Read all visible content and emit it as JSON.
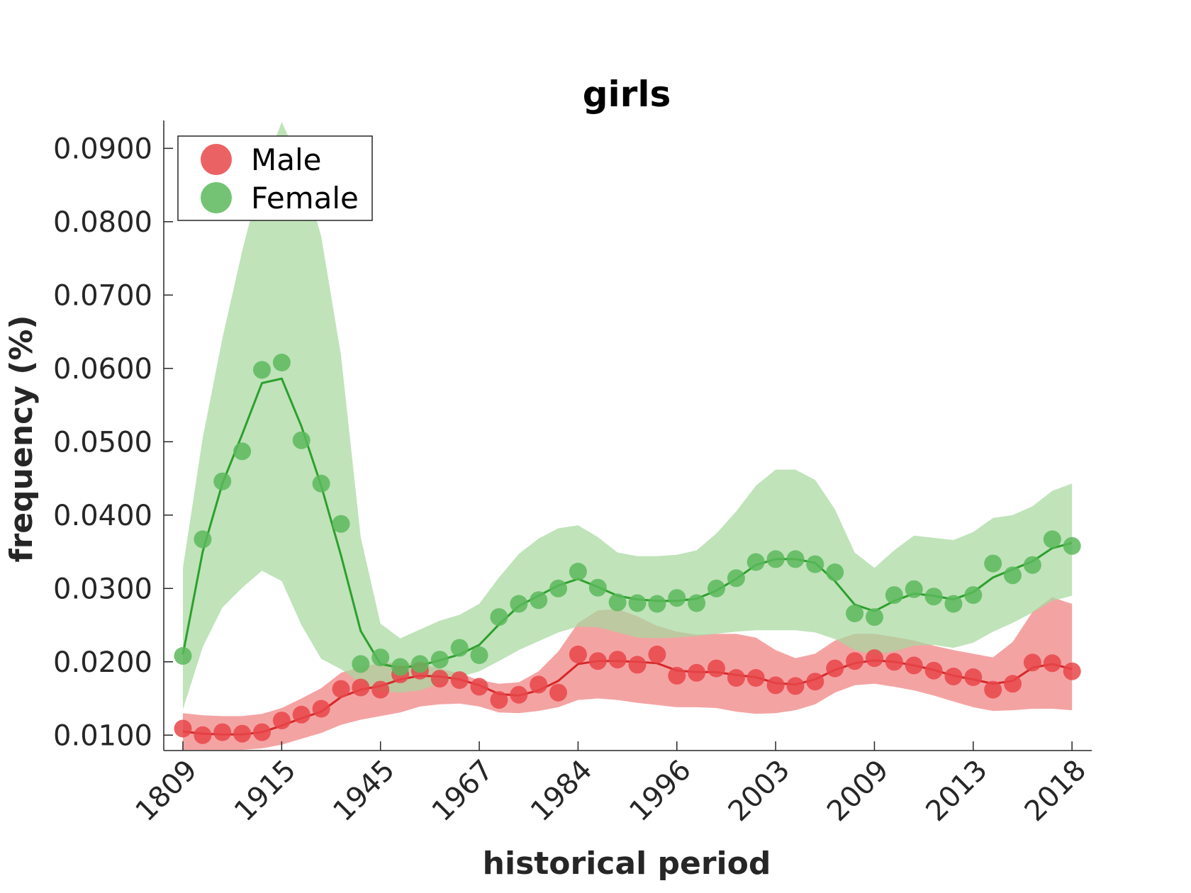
{
  "chart_data": {
    "type": "line",
    "title": "girls",
    "xlabel": "historical period",
    "ylabel": "frequency (%)",
    "x_tick_labels": [
      "1809",
      "1915",
      "1945",
      "1967",
      "1984",
      "1996",
      "2003",
      "2009",
      "2013",
      "2018"
    ],
    "y_ticks": [
      0.01,
      0.02,
      0.03,
      0.04,
      0.05,
      0.06,
      0.07,
      0.08,
      0.09
    ],
    "y_tick_labels": [
      "0.0100",
      "0.0200",
      "0.0300",
      "0.0400",
      "0.0500",
      "0.0600",
      "0.0700",
      "0.0800",
      "0.0900"
    ],
    "ylim": [
      0.0079,
      0.0938
    ],
    "grid": false,
    "legend_position": "top-left",
    "series": [
      {
        "name": "Male",
        "color": "#d62728",
        "marker_color": "#e8474a",
        "band_color": "#f08080",
        "points": [
          0.0109,
          0.01,
          0.0104,
          0.0102,
          0.0104,
          0.012,
          0.0128,
          0.0136,
          0.0163,
          0.0165,
          0.0162,
          0.0183,
          0.0188,
          0.0177,
          0.0175,
          0.0166,
          0.0148,
          0.0155,
          0.0169,
          0.0158,
          0.021,
          0.0201,
          0.0203,
          0.0196,
          0.021,
          0.0181,
          0.0185,
          0.0191,
          0.0178,
          0.0178,
          0.0168,
          0.0167,
          0.0173,
          0.0191,
          0.0201,
          0.0205,
          0.02,
          0.0195,
          0.0188,
          0.018,
          0.0179,
          0.0162,
          0.017,
          0.0199,
          0.0198,
          0.0187
        ],
        "fit": [
          0.0105,
          0.0102,
          0.0101,
          0.0101,
          0.0104,
          0.0113,
          0.0123,
          0.0132,
          0.0152,
          0.0162,
          0.0167,
          0.0176,
          0.0181,
          0.018,
          0.0176,
          0.0168,
          0.0156,
          0.0154,
          0.0161,
          0.0174,
          0.0197,
          0.0201,
          0.0201,
          0.02,
          0.0198,
          0.0188,
          0.0186,
          0.0186,
          0.0182,
          0.0179,
          0.0171,
          0.0169,
          0.0176,
          0.0189,
          0.0198,
          0.0202,
          0.02,
          0.0195,
          0.0189,
          0.0181,
          0.0176,
          0.017,
          0.0174,
          0.0192,
          0.0197,
          0.019
        ],
        "band_upper": [
          0.013,
          0.0127,
          0.0126,
          0.0126,
          0.0129,
          0.0137,
          0.015,
          0.0164,
          0.0185,
          0.0193,
          0.0198,
          0.0199,
          0.0197,
          0.0191,
          0.0184,
          0.0175,
          0.017,
          0.0172,
          0.0187,
          0.0214,
          0.0253,
          0.027,
          0.0272,
          0.0262,
          0.0249,
          0.0241,
          0.0237,
          0.0238,
          0.0238,
          0.0233,
          0.0216,
          0.0205,
          0.0211,
          0.0229,
          0.0238,
          0.0238,
          0.0234,
          0.0229,
          0.0222,
          0.0216,
          0.0211,
          0.0206,
          0.0227,
          0.0268,
          0.0288,
          0.0279
        ],
        "band_lower": [
          0.008,
          0.008,
          0.008,
          0.008,
          0.0082,
          0.0087,
          0.0095,
          0.0103,
          0.0114,
          0.0121,
          0.0126,
          0.0131,
          0.0139,
          0.0142,
          0.0143,
          0.0139,
          0.0131,
          0.013,
          0.0133,
          0.0138,
          0.0148,
          0.015,
          0.0148,
          0.0144,
          0.0141,
          0.0138,
          0.0138,
          0.0137,
          0.0132,
          0.0129,
          0.013,
          0.0134,
          0.0142,
          0.0158,
          0.0168,
          0.017,
          0.0166,
          0.0161,
          0.0154,
          0.0146,
          0.0138,
          0.0133,
          0.0134,
          0.0136,
          0.0136,
          0.0134
        ]
      },
      {
        "name": "Female",
        "color": "#2ca02c",
        "marker_color": "#5cb85c",
        "band_color": "#a8d8a0",
        "points": [
          0.0208,
          0.0367,
          0.0446,
          0.0487,
          0.0598,
          0.0608,
          0.0502,
          0.0443,
          0.0388,
          0.0197,
          0.0206,
          0.0193,
          0.0197,
          0.0203,
          0.0219,
          0.0209,
          0.0261,
          0.0279,
          0.0284,
          0.03,
          0.0323,
          0.0301,
          0.0281,
          0.028,
          0.0279,
          0.0287,
          0.028,
          0.03,
          0.0314,
          0.0336,
          0.034,
          0.034,
          0.0333,
          0.0322,
          0.0266,
          0.0261,
          0.0291,
          0.0299,
          0.0289,
          0.0279,
          0.0291,
          0.0334,
          0.0318,
          0.0332,
          0.0367,
          0.0358
        ],
        "fit": [
          0.021,
          0.035,
          0.0443,
          0.051,
          0.058,
          0.0586,
          0.0521,
          0.044,
          0.0345,
          0.0242,
          0.0197,
          0.0192,
          0.0195,
          0.0202,
          0.021,
          0.0223,
          0.0251,
          0.0276,
          0.029,
          0.0304,
          0.0313,
          0.0302,
          0.029,
          0.0285,
          0.0283,
          0.0283,
          0.0286,
          0.0297,
          0.0313,
          0.0332,
          0.034,
          0.034,
          0.0335,
          0.031,
          0.0278,
          0.0269,
          0.0283,
          0.0293,
          0.029,
          0.0285,
          0.0295,
          0.0315,
          0.0326,
          0.0337,
          0.0355,
          0.0362
        ],
        "band_upper": [
          0.0328,
          0.0505,
          0.0641,
          0.076,
          0.0866,
          0.0936,
          0.0877,
          0.078,
          0.0618,
          0.037,
          0.0252,
          0.0232,
          0.0244,
          0.0256,
          0.0264,
          0.0279,
          0.0315,
          0.0347,
          0.0368,
          0.0382,
          0.0386,
          0.037,
          0.0349,
          0.0344,
          0.0344,
          0.0346,
          0.0352,
          0.0375,
          0.0405,
          0.044,
          0.0462,
          0.0462,
          0.0448,
          0.0408,
          0.0349,
          0.0328,
          0.0352,
          0.0372,
          0.0369,
          0.0366,
          0.0377,
          0.0396,
          0.04,
          0.0412,
          0.0433,
          0.0443
        ],
        "band_lower": [
          0.0135,
          0.022,
          0.0274,
          0.0301,
          0.0324,
          0.031,
          0.025,
          0.0204,
          0.019,
          0.0171,
          0.016,
          0.0158,
          0.0161,
          0.017,
          0.0179,
          0.0187,
          0.0201,
          0.0216,
          0.0228,
          0.024,
          0.0248,
          0.0247,
          0.024,
          0.0233,
          0.0232,
          0.0233,
          0.0235,
          0.0238,
          0.0241,
          0.0243,
          0.0243,
          0.0243,
          0.024,
          0.0231,
          0.0216,
          0.021,
          0.0214,
          0.0222,
          0.0223,
          0.0219,
          0.0226,
          0.0241,
          0.0253,
          0.0267,
          0.0283,
          0.029
        ]
      }
    ]
  }
}
